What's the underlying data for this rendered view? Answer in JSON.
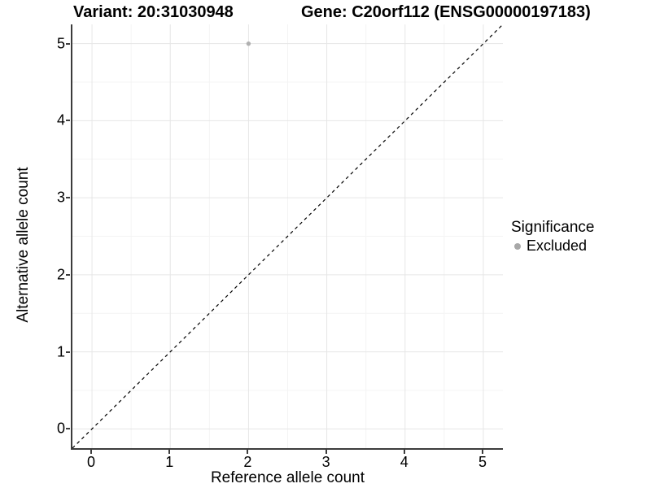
{
  "titles": {
    "variant": "Variant: 20:31030948",
    "gene": "Gene: C20orf112 (ENSG00000197183)"
  },
  "legend": {
    "title": "Significance",
    "items": [
      {
        "label": "Excluded",
        "color": "#a8a8a8"
      }
    ]
  },
  "colors": {
    "background": "#ffffff",
    "axis_line": "#3c3c3c",
    "grid_major": "#e6e6e6",
    "grid_minor": "#f4f4f4",
    "point": "#b0b0b0",
    "reference_line": "#000000",
    "text": "#000000"
  },
  "chart_data": {
    "type": "scatter",
    "title": "Variant: 20:31030948    Gene: C20orf112 (ENSG00000197183)",
    "xlabel": "Reference allele count",
    "ylabel": "Alternative allele count",
    "xlim": [
      -0.25,
      5.25
    ],
    "ylim": [
      -0.25,
      5.25
    ],
    "x_ticks": [
      0,
      1,
      2,
      3,
      4,
      5
    ],
    "y_ticks": [
      0,
      1,
      2,
      3,
      4,
      5
    ],
    "x_minor_ticks": [
      0.5,
      1.5,
      2.5,
      3.5,
      4.5
    ],
    "y_minor_ticks": [
      0.5,
      1.5,
      2.5,
      3.5,
      4.5
    ],
    "grid": "major+minor",
    "legend_position": "right",
    "series": [
      {
        "name": "Excluded",
        "color": "#b0b0b0",
        "points": [
          {
            "x": 2,
            "y": 5
          }
        ]
      }
    ],
    "reference_line": {
      "type": "identity y=x",
      "style": "dashed",
      "color": "#000000"
    }
  }
}
